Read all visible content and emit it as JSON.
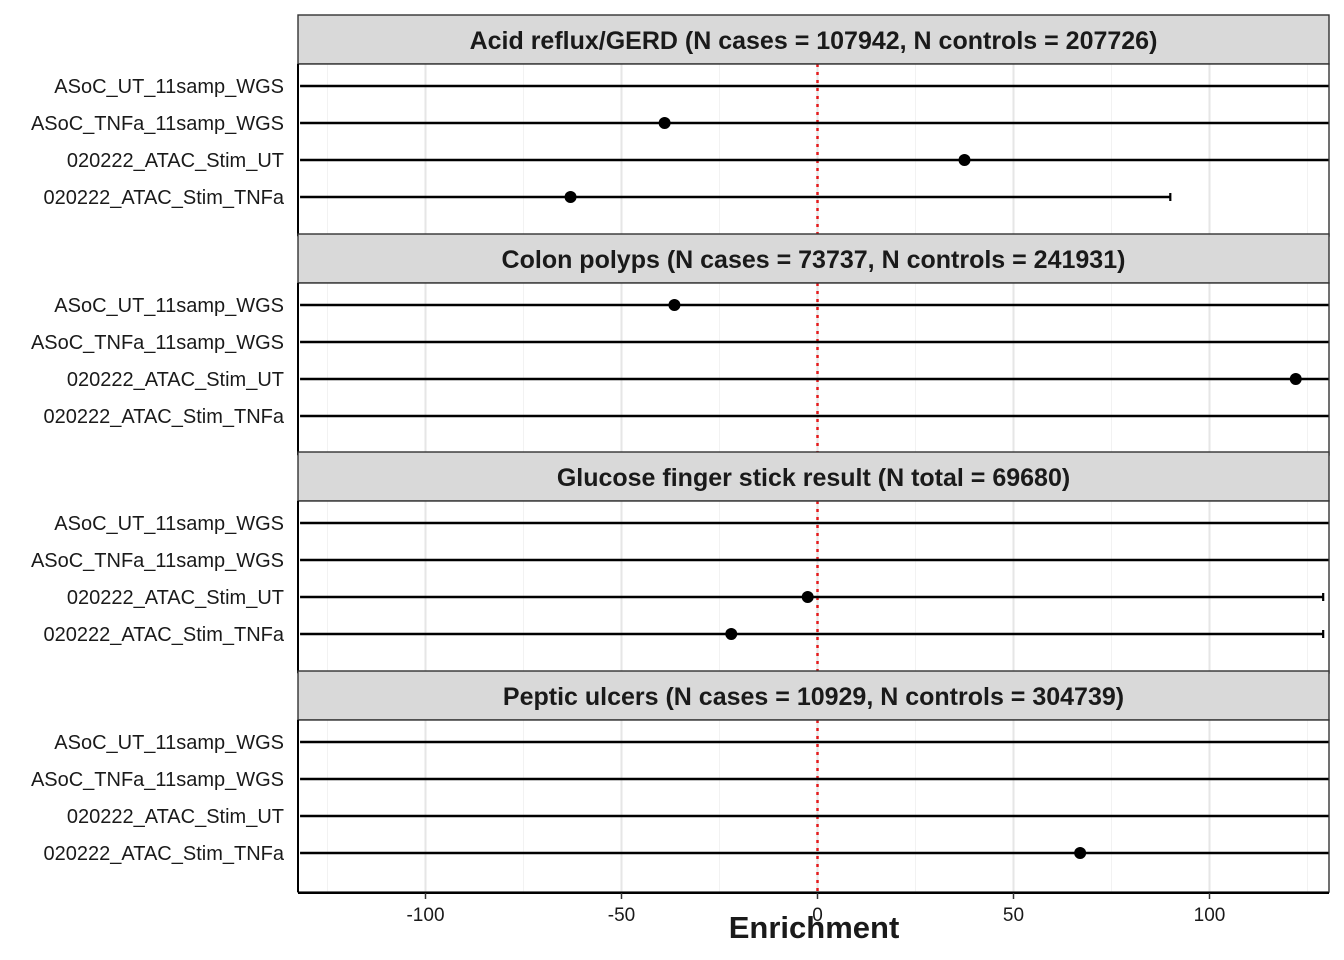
{
  "chart_data": {
    "type": "forest",
    "xlabel": "Enrichment",
    "xlim": [
      -132,
      132
    ],
    "x_ticks": [
      -100,
      -50,
      0,
      50,
      100
    ],
    "x_tick_labels": [
      "-100",
      "-50",
      "0",
      "50",
      "100"
    ],
    "reference_line": {
      "x": 0,
      "color": "#e41a1c",
      "style": "dotted"
    },
    "grid": true,
    "rows": [
      "ASoC_UT_11samp_WGS",
      "ASoC_TNFa_11samp_WGS",
      "020222_ATAC_Stim_UT",
      "020222_ATAC_Stim_TNFa"
    ],
    "panels": [
      {
        "title": "Acid reflux/GERD (N cases = 107942, N controls = 207726)",
        "estimates": [
          null,
          -39,
          37.5,
          -63
        ],
        "ci_low": [
          -132,
          -132,
          -132,
          -132
        ],
        "ci_high": [
          132,
          132,
          132,
          90
        ],
        "ci_high_capped": [
          false,
          false,
          false,
          true
        ]
      },
      {
        "title": "Colon polyps (N cases = 73737, N controls = 241931)",
        "estimates": [
          -36.5,
          null,
          122,
          null
        ],
        "ci_low": [
          -132,
          -132,
          -132,
          -132
        ],
        "ci_high": [
          132,
          132,
          132,
          132
        ],
        "ci_high_capped": [
          false,
          false,
          false,
          false
        ]
      },
      {
        "title": "Glucose finger stick result (N total = 69680)",
        "estimates": [
          null,
          null,
          -2.5,
          -22
        ],
        "ci_low": [
          -132,
          -132,
          -132,
          -132
        ],
        "ci_high": [
          132,
          132,
          129,
          129
        ],
        "ci_high_capped": [
          false,
          false,
          true,
          true
        ]
      },
      {
        "title": "Peptic ulcers (N cases = 10929, N controls = 304739)",
        "estimates": [
          null,
          null,
          null,
          67
        ],
        "ci_low": [
          -132,
          -132,
          -132,
          -132
        ],
        "ci_high": [
          132,
          132,
          132,
          132
        ],
        "ci_high_capped": [
          false,
          false,
          false,
          false
        ]
      }
    ]
  }
}
